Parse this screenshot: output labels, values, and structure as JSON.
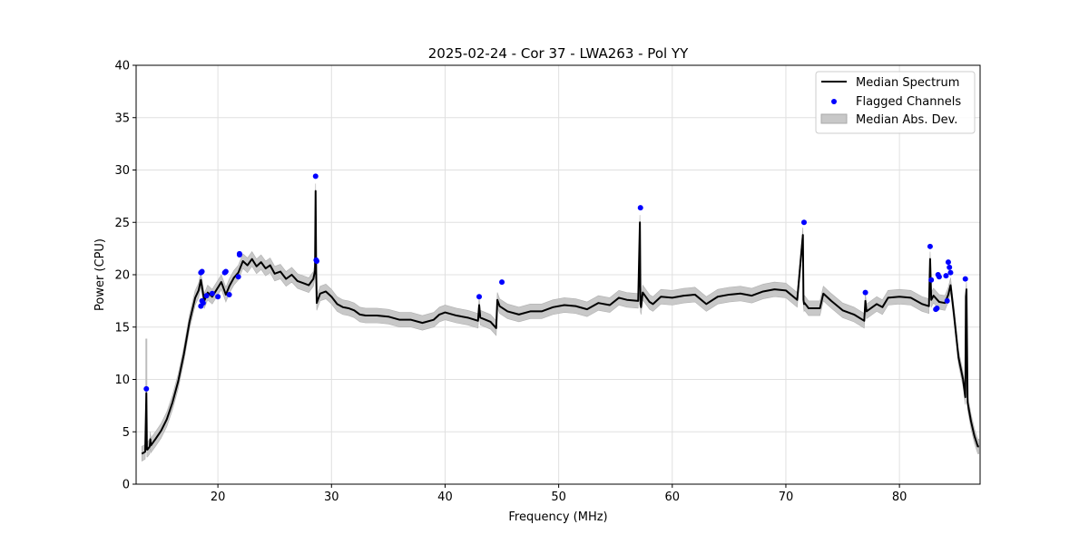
{
  "chart_data": {
    "type": "line",
    "title": "2025-02-24 - Cor 37 - LWA263 - Pol YY",
    "xlabel": "Frequency (MHz)",
    "ylabel": "Power (CPU)",
    "xlim": [
      12.8,
      87.1
    ],
    "ylim": [
      0,
      40
    ],
    "xticks": [
      20,
      30,
      40,
      50,
      60,
      70,
      80
    ],
    "yticks": [
      0,
      5,
      10,
      15,
      20,
      25,
      30,
      35,
      40
    ],
    "grid": true,
    "legend_position": "top-right",
    "colors": {
      "median": "#000000",
      "flagged": "#0000ff",
      "mad_fill": "#c8c8c8",
      "grid": "#e0e0e0"
    },
    "series": [
      {
        "name": "Median Spectrum",
        "kind": "line",
        "x": [
          13.3,
          13.6,
          13.7,
          13.75,
          13.8,
          14.0,
          14.05,
          14.1,
          14.5,
          15.0,
          15.5,
          16.0,
          16.5,
          17.0,
          17.5,
          18.0,
          18.3,
          18.5,
          18.8,
          19.1,
          19.5,
          19.9,
          20.3,
          20.7,
          21.0,
          21.4,
          21.8,
          22.2,
          22.6,
          23.0,
          23.4,
          23.8,
          24.2,
          24.6,
          25.0,
          25.5,
          26.0,
          26.5,
          27.0,
          27.5,
          28.0,
          28.4,
          28.55,
          28.6,
          28.65,
          28.7,
          29.0,
          29.5,
          30.0,
          30.5,
          31.0,
          31.5,
          32.0,
          32.5,
          33.0,
          34.0,
          35.0,
          36.0,
          37.0,
          38.0,
          39.0,
          39.5,
          40.0,
          41.0,
          42.0,
          42.9,
          43.0,
          43.1,
          44.0,
          44.5,
          44.6,
          44.8,
          45.5,
          46.5,
          47.5,
          48.5,
          49.5,
          50.5,
          51.5,
          52.5,
          53.5,
          54.5,
          55.3,
          56.0,
          57.0,
          57.15,
          57.2,
          57.25,
          57.4,
          58.0,
          58.3,
          59.0,
          60.0,
          61.0,
          62.0,
          63.0,
          64.0,
          65.0,
          66.0,
          67.0,
          68.0,
          69.0,
          70.0,
          71.0,
          71.5,
          71.55,
          71.6,
          71.65,
          72.0,
          73.0,
          73.3,
          74.0,
          75.0,
          76.0,
          76.9,
          77.0,
          77.1,
          78.0,
          78.5,
          79.0,
          80.0,
          81.0,
          82.0,
          82.6,
          82.7,
          82.8,
          83.0,
          83.5,
          84.0,
          84.3,
          84.5,
          84.8,
          85.2,
          85.6,
          85.8,
          85.85,
          85.9,
          86.0,
          86.3,
          86.6,
          86.9,
          87.0
        ],
        "y": [
          2.9,
          3.1,
          8.7,
          3.3,
          3.3,
          3.6,
          4.3,
          3.7,
          4.3,
          5.1,
          6.2,
          7.8,
          9.8,
          12.4,
          15.5,
          17.8,
          18.5,
          19.5,
          17.5,
          18.3,
          17.9,
          18.6,
          19.3,
          18.1,
          18.9,
          19.7,
          20.2,
          21.3,
          20.9,
          21.5,
          20.8,
          21.2,
          20.6,
          20.9,
          20.1,
          20.3,
          19.6,
          20.0,
          19.4,
          19.2,
          19.0,
          19.6,
          20.4,
          28.0,
          20.3,
          17.3,
          18.2,
          18.4,
          17.9,
          17.2,
          16.9,
          16.8,
          16.6,
          16.2,
          16.1,
          16.1,
          16.0,
          15.7,
          15.7,
          15.4,
          15.7,
          16.2,
          16.4,
          16.1,
          15.9,
          15.6,
          17.1,
          15.9,
          15.5,
          14.9,
          17.6,
          17.0,
          16.5,
          16.2,
          16.5,
          16.5,
          16.9,
          17.1,
          17.0,
          16.7,
          17.3,
          17.1,
          17.8,
          17.6,
          17.5,
          25.0,
          17.2,
          16.9,
          18.3,
          17.4,
          17.2,
          17.9,
          17.8,
          18.0,
          18.1,
          17.2,
          17.9,
          18.1,
          18.2,
          18.0,
          18.4,
          18.6,
          18.5,
          17.6,
          23.8,
          17.6,
          17.2,
          17.3,
          16.8,
          16.8,
          18.2,
          17.5,
          16.6,
          16.2,
          15.6,
          17.5,
          16.5,
          17.2,
          16.9,
          17.8,
          17.9,
          17.8,
          17.2,
          17.0,
          21.5,
          17.6,
          18.0,
          17.4,
          17.3,
          18.1,
          19.0,
          16.2,
          12.1,
          10.0,
          8.3,
          17.9,
          18.6,
          7.8,
          6.0,
          4.6,
          3.6,
          3.6
        ],
        "visible_spikes_note": "sharp narrow RFI spikes at listed x positions"
      },
      {
        "name": "Flagged Channels",
        "kind": "scatter",
        "x": [
          13.7,
          18.5,
          18.6,
          18.5,
          18.7,
          18.6,
          19.0,
          19.5,
          20.0,
          20.6,
          20.7,
          21.0,
          21.8,
          21.9,
          21.9,
          28.6,
          28.65,
          28.7,
          43.0,
          45.0,
          57.2,
          71.6,
          77.0,
          82.7,
          82.8,
          83.2,
          83.3,
          83.4,
          83.5,
          84.1,
          84.2,
          84.3,
          84.4,
          84.5,
          85.8
        ],
        "y": [
          9.1,
          20.2,
          20.3,
          17.0,
          17.3,
          17.5,
          18.0,
          18.2,
          17.9,
          20.2,
          20.3,
          18.1,
          19.8,
          21.9,
          22.0,
          29.4,
          21.4,
          21.3,
          17.9,
          19.3,
          26.4,
          25.0,
          18.3,
          22.7,
          19.5,
          16.7,
          16.8,
          20.0,
          19.8,
          19.9,
          17.5,
          21.2,
          20.7,
          20.2,
          19.6
        ]
      },
      {
        "name": "Median Abs. Dev.",
        "kind": "band",
        "half_width": 0.7
      }
    ],
    "outlier_band_peak": {
      "x": 13.7,
      "y_high": 13.9
    }
  }
}
